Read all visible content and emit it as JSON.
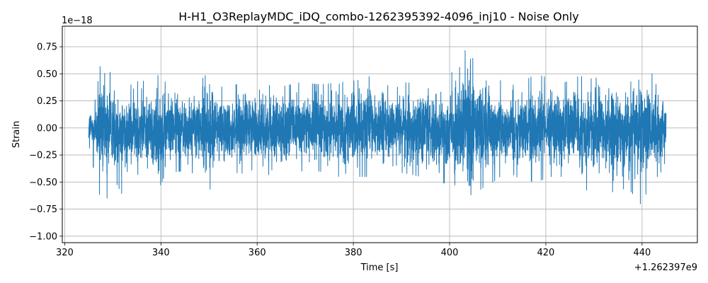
{
  "chart_data": {
    "type": "line",
    "title": "H-H1_O3ReplayMDC_iDQ_combo-1262395392-4096_inj10 - Noise Only",
    "xlabel": "Time [s]",
    "ylabel": "Strain",
    "x_offset_label": "+1.262397e9",
    "y_scale_label": "1e−18",
    "xlim": [
      319.5,
      451.5
    ],
    "ylim": [
      -1.06,
      0.94
    ],
    "x_ticks": [
      320,
      340,
      360,
      380,
      400,
      420,
      440
    ],
    "x_tick_labels": [
      "320",
      "340",
      "360",
      "380",
      "400",
      "420",
      "440"
    ],
    "y_ticks": [
      -1.0,
      -0.75,
      -0.5,
      -0.25,
      0.0,
      0.25,
      0.5,
      0.75
    ],
    "y_tick_labels": [
      "−1.00",
      "−0.75",
      "−0.50",
      "−0.25",
      "0.00",
      "0.25",
      "0.50",
      "0.75"
    ],
    "grid": true,
    "series": [
      {
        "color": "#1f77b4",
        "x_start": 325,
        "x_end": 445,
        "envelope": {
          "x": [
            325,
            327,
            328.5,
            330,
            332,
            334,
            336,
            338,
            339,
            341,
            344,
            347,
            350,
            353,
            357,
            361,
            365,
            369,
            373,
            377,
            381,
            385,
            388,
            391,
            394,
            397,
            400,
            402,
            403.5,
            404.5,
            405.5,
            407,
            409,
            412,
            415,
            418,
            421,
            424,
            427,
            430,
            432,
            434,
            437,
            440,
            442,
            443.5,
            445
          ],
          "upper": [
            0.2,
            0.55,
            0.62,
            0.45,
            0.38,
            0.4,
            0.45,
            0.35,
            0.5,
            0.42,
            0.42,
            0.38,
            0.52,
            0.36,
            0.42,
            0.4,
            0.38,
            0.42,
            0.4,
            0.42,
            0.44,
            0.5,
            0.35,
            0.42,
            0.4,
            0.45,
            0.5,
            0.55,
            0.75,
            0.84,
            0.55,
            0.62,
            0.5,
            0.38,
            0.42,
            0.5,
            0.45,
            0.42,
            0.48,
            0.45,
            0.5,
            0.44,
            0.42,
            0.45,
            0.52,
            0.42,
            0.2
          ],
          "lower": [
            -0.15,
            -0.6,
            -0.7,
            -0.45,
            -0.62,
            -0.4,
            -0.45,
            -0.5,
            -0.62,
            -0.42,
            -0.4,
            -0.42,
            -0.58,
            -0.4,
            -0.42,
            -0.45,
            -0.4,
            -0.42,
            -0.4,
            -0.45,
            -0.45,
            -0.45,
            -0.4,
            -0.42,
            -0.45,
            -0.52,
            -0.5,
            -0.55,
            -0.8,
            -0.97,
            -0.6,
            -0.55,
            -0.5,
            -0.4,
            -0.48,
            -0.5,
            -0.45,
            -0.45,
            -0.5,
            -0.65,
            -0.45,
            -0.6,
            -0.55,
            -0.72,
            -0.45,
            -0.45,
            -0.3
          ]
        }
      }
    ]
  }
}
